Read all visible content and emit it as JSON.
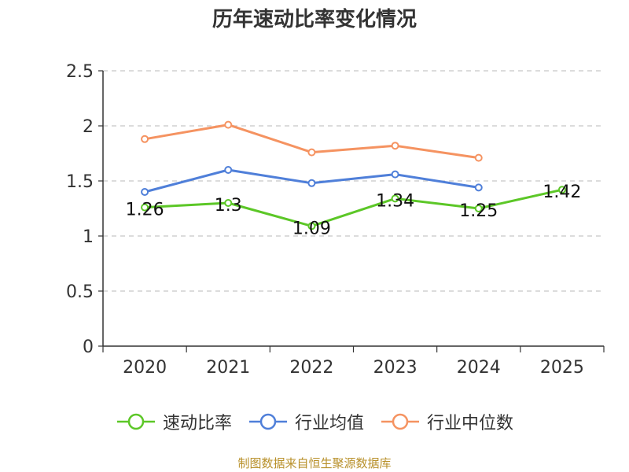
{
  "title": "历年速动比率变化情况",
  "source": "制图数据来自恒生聚源数据库",
  "chart_data": {
    "type": "line",
    "title": "历年速动比率变化情况",
    "categories": [
      "2020",
      "2021",
      "2022",
      "2023",
      "2024",
      "2025"
    ],
    "ylim": [
      0,
      2.5
    ],
    "yticks": [
      "0",
      "0.5",
      "1",
      "1.5",
      "2",
      "2.5"
    ],
    "grid": true,
    "legend_position": "bottom",
    "series": [
      {
        "name": "速动比率",
        "color": "#5cc727",
        "values": [
          1.26,
          1.3,
          1.09,
          1.34,
          1.25,
          1.42
        ],
        "labels": [
          "1.26",
          "1.3",
          "1.09",
          "1.34",
          "1.25",
          "1.42"
        ]
      },
      {
        "name": "行业均值",
        "color": "#4f7fd9",
        "values": [
          1.4,
          1.6,
          1.48,
          1.56,
          1.44,
          null
        ]
      },
      {
        "name": "行业中位数",
        "color": "#f59361",
        "values": [
          1.88,
          2.01,
          1.76,
          1.82,
          1.71,
          null
        ]
      }
    ]
  }
}
